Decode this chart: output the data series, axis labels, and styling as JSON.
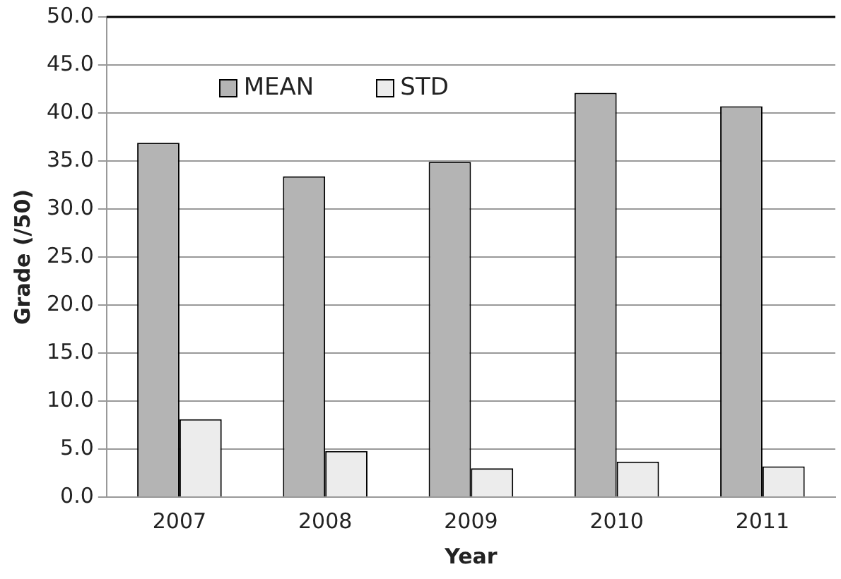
{
  "chart_data": {
    "type": "bar",
    "xlabel": "Year",
    "ylabel": "Grade (/50)",
    "categories": [
      "2007",
      "2008",
      "2009",
      "2010",
      "2011"
    ],
    "series": [
      {
        "name": "MEAN",
        "color": "#b4b4b4",
        "values": [
          36.9,
          33.4,
          34.9,
          42.1,
          40.7
        ]
      },
      {
        "name": "STD",
        "color": "#ececec",
        "values": [
          8.1,
          4.8,
          3.0,
          3.7,
          3.2
        ]
      }
    ],
    "ylim": [
      0,
      50
    ],
    "yticks": [
      {
        "value": 0,
        "label": "0.0"
      },
      {
        "value": 5,
        "label": "5.0"
      },
      {
        "value": 10,
        "label": "10.0"
      },
      {
        "value": 15,
        "label": "15.0"
      },
      {
        "value": 20,
        "label": "20.0"
      },
      {
        "value": 25,
        "label": "25.0"
      },
      {
        "value": 30,
        "label": "30.0"
      },
      {
        "value": 35,
        "label": "35.0"
      },
      {
        "value": 40,
        "label": "40.0"
      },
      {
        "value": 45,
        "label": "45.0"
      },
      {
        "value": 50,
        "label": "50.0"
      }
    ],
    "grid": "y",
    "legend": "top left"
  }
}
